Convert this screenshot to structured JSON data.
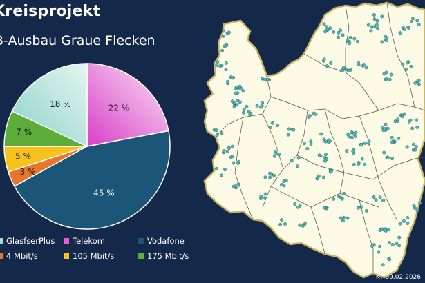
{
  "title": "Kreisprojekt",
  "subtitle": "B-Ausbau Graue Flecken",
  "footer": "KT 09.02.2026",
  "chart_data": {
    "type": "pie",
    "slices": [
      {
        "label": "Telekom",
        "value": 22,
        "text": "22 %",
        "color": "#e45fd4"
      },
      {
        "label": "Vodafone",
        "value": 45,
        "text": "45 %",
        "color": "#1b5578"
      },
      {
        "label": "",
        "value": 3,
        "text": "3 %",
        "color": "#e8752c"
      },
      {
        "label": "",
        "value": 5,
        "text": "5 %",
        "color": "#f7c21c"
      },
      {
        "label": "",
        "value": 7,
        "text": "7 %",
        "color": "#5cad3a"
      },
      {
        "label": "",
        "value": 18,
        "text": "18 %",
        "color": "#9fdcd3"
      }
    ]
  },
  "legend": [
    {
      "label": "GlasfserPlus",
      "color": "#9fdcd3"
    },
    {
      "label": "Telekom",
      "color": "#e45fd4"
    },
    {
      "label": "Vodafone",
      "color": "#1b5578"
    },
    {
      "label": "4 Mbit/s",
      "color": "#e8752c"
    },
    {
      "label": "105 Mbit/s",
      "color": "#f7c21c"
    },
    {
      "label": "175 Mbit/s",
      "color": "#5cad3a"
    }
  ],
  "colors": {
    "background": "#14284a",
    "map_fill": "#fdfbe6",
    "map_border": "#c9b766",
    "dot": "#4fb7b0"
  }
}
